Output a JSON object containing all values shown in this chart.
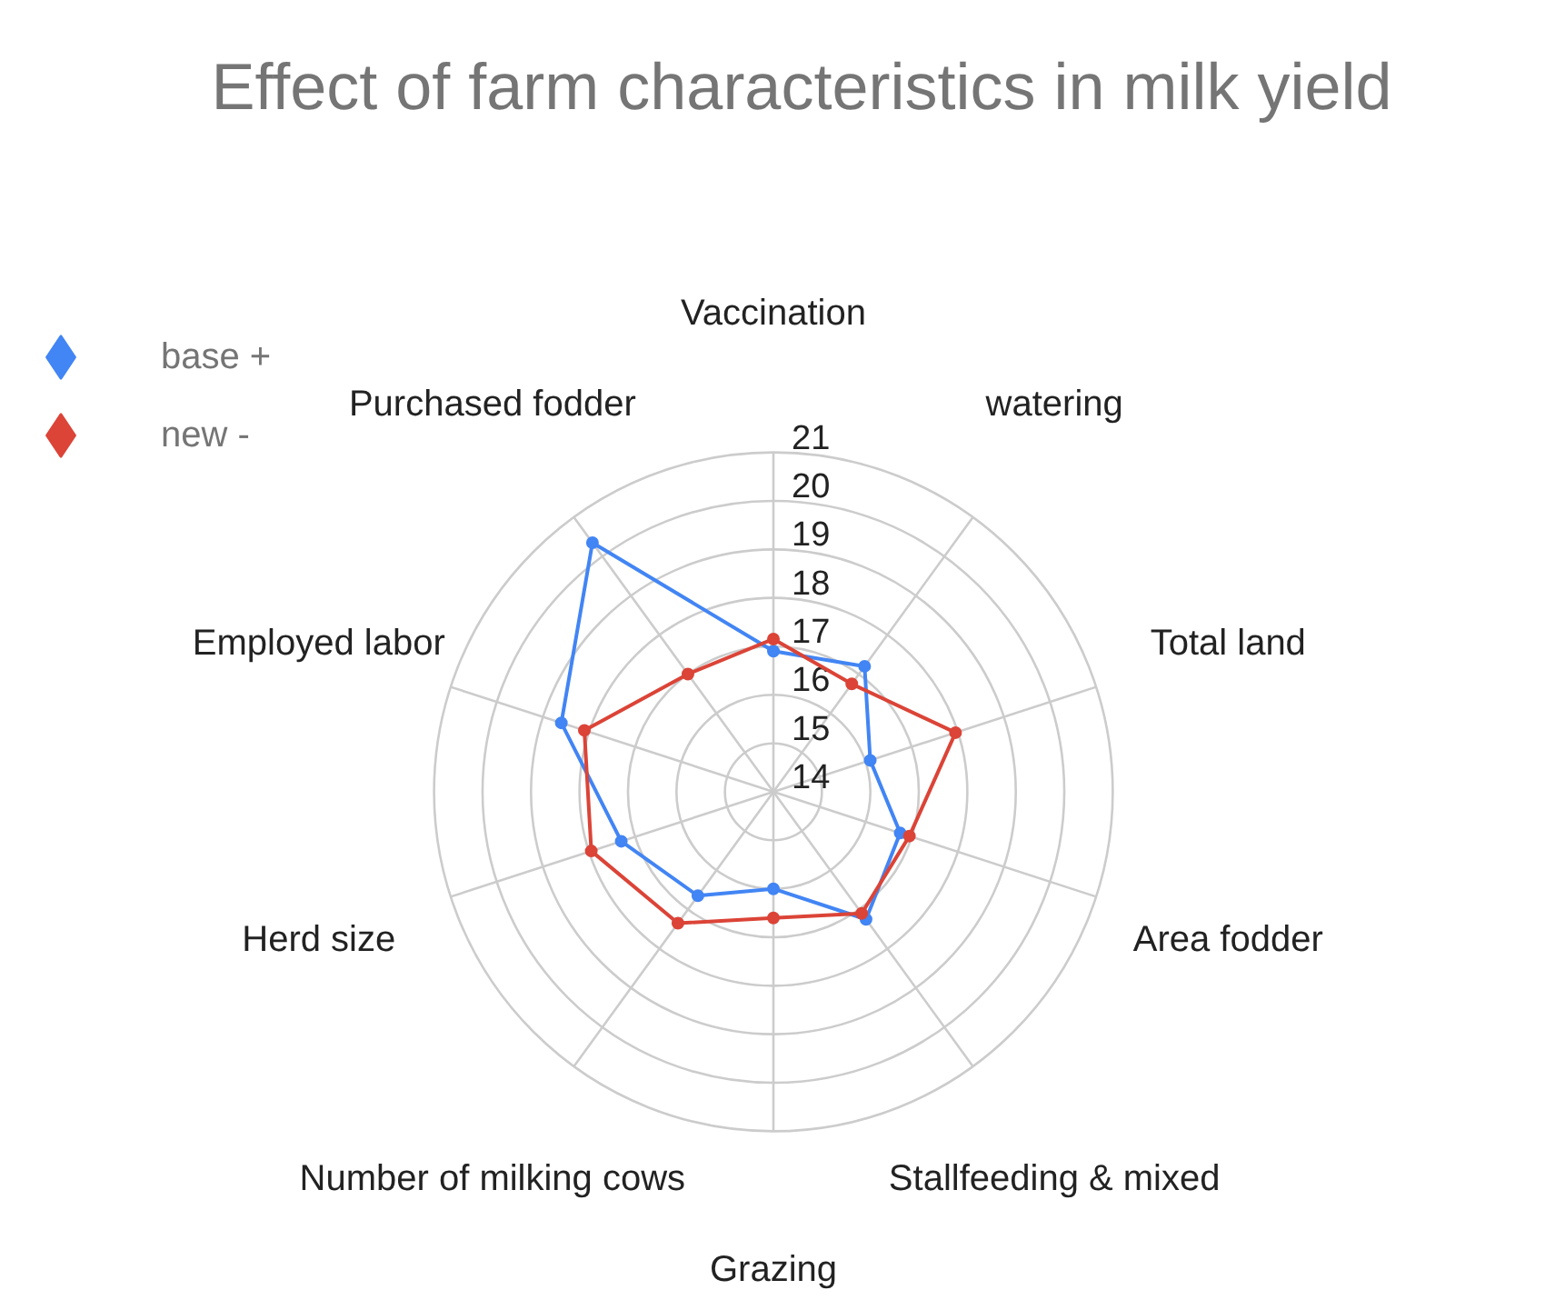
{
  "chart_data": {
    "type": "radar",
    "title": "Effect of farm characteristics in milk yield",
    "categories": [
      "Vaccination",
      "watering",
      "Total land",
      "Area fodder",
      "Stallfeeding & mixed",
      "Grazing",
      "Number of milking cows",
      "Herd size",
      "Employed labor",
      "Purchased fodder"
    ],
    "series": [
      {
        "name": "base +",
        "color": "#4285f4",
        "values": [
          16.9,
          17.2,
          16.1,
          16.75,
          17.25,
          16.0,
          16.65,
          17.3,
          18.6,
          20.35
        ]
      },
      {
        "name": "new -",
        "color": "#db4437",
        "values": [
          17.15,
          16.75,
          17.95,
          16.95,
          17.1,
          16.6,
          17.35,
          17.95,
          18.1,
          17.0
        ]
      }
    ],
    "ylim": [
      14,
      21
    ],
    "yticks": [
      14,
      15,
      16,
      17,
      18,
      19,
      20,
      21
    ],
    "grid": true,
    "legend": "top left",
    "marker": "circle",
    "line_style": "solid"
  }
}
